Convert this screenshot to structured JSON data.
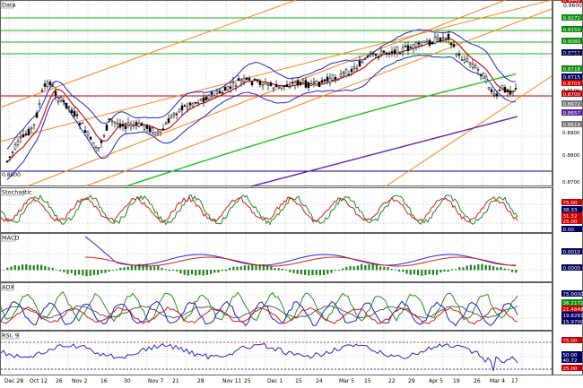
{
  "panels": {
    "price": {
      "label": "Data"
    },
    "stochastic": {
      "label": "Stochastic"
    },
    "macd": {
      "label": "MACD"
    },
    "adx": {
      "label": "ADX"
    },
    "rsi": {
      "label": "RSI, 9"
    }
  },
  "colors": {
    "background": "#ffffff",
    "grid": "#9a9a9a",
    "candle": "#000000",
    "bollinger": "#1e28c8",
    "ma_short": "#c81414",
    "ma_mid": "#19c819",
    "ma_long": "#6a1eb4",
    "channel": "#ff7f1e",
    "hline_green": "#14b414",
    "hline_red": "#cc0000",
    "hline_blue": "#00008a",
    "stoch_green": "#1e8c1e",
    "stoch_red": "#d21e1e",
    "macd_blue": "#2828dc",
    "macd_red": "#dc1e1e",
    "macd_hist": "#1e821e",
    "adx_green": "#1e961e",
    "adx_blue": "#2020d0",
    "adx_red": "#d21e1e",
    "adx_dark": "#3c3c3c",
    "rsi_blue": "#2828c8",
    "label_red": "#cc0000",
    "label_navy": "#000060",
    "label_green": "#0a8c0a",
    "label_purple": "#5a1ea0",
    "label_gray": "#787878"
  },
  "price_axis": {
    "top": "0.9600",
    "left_marker": "0.8800",
    "ticks": [
      "0.9200",
      "0.9100",
      "0.8900",
      "0.8800",
      "0.8700"
    ],
    "labels": [
      {
        "text": "0.9440",
        "color": "label_red"
      },
      {
        "text": "0.9272",
        "color": "label_green"
      },
      {
        "text": "0.9150",
        "color": "label_green"
      },
      {
        "text": "0.9080",
        "color": "label_green"
      },
      {
        "text": "0.8757",
        "color": "label_navy"
      },
      {
        "text": "0.8718",
        "color": "label_green"
      },
      {
        "text": "0.8715",
        "color": "label_navy"
      },
      {
        "text": "0.8703",
        "color": "label_red"
      },
      {
        "text": "0.8700",
        "color": "label_red"
      },
      {
        "text": "0.8672",
        "color": "label_gray"
      },
      {
        "text": "0.8657",
        "color": "label_purple"
      },
      {
        "text": "0.8619",
        "color": "label_gray"
      }
    ]
  },
  "stoch_axis": {
    "labels": [
      {
        "text": "75.00",
        "color": "label_red"
      },
      {
        "text": "38.33",
        "color": "label_navy"
      },
      {
        "text": "31.32",
        "color": "label_red"
      },
      {
        "text": "25.00",
        "color": "label_red"
      },
      {
        "text": "0.00",
        "color": "label_navy"
      }
    ]
  },
  "macd_axis": {
    "labels": [
      {
        "text": "0.0010",
        "color": "label_navy"
      },
      {
        "text": "0.0000",
        "color": "label_navy"
      }
    ]
  },
  "adx_axis": {
    "labels": [
      {
        "text": "75.0000",
        "color": "label_navy"
      },
      {
        "text": "36.2172",
        "color": "label_green"
      },
      {
        "text": "21.4848",
        "color": "label_red"
      },
      {
        "text": "19.8281",
        "color": "label_navy"
      },
      {
        "text": "15.9700",
        "color": "label_navy"
      }
    ]
  },
  "rsi_axis": {
    "labels": [
      {
        "text": "75.00",
        "color": "label_red"
      },
      {
        "text": "50.00",
        "color": "label_navy"
      },
      {
        "text": "40.72",
        "color": "label_navy"
      },
      {
        "text": "25.00",
        "color": "label_red"
      }
    ]
  },
  "x_axis": {
    "labels": [
      "Dec 28",
      "Oct 12",
      "26",
      "Nov 2",
      "16",
      "30",
      "Nov 7",
      "21",
      "28",
      "Nov 11",
      "25",
      "Dec 1",
      "15",
      "24",
      "Mar 5",
      "15",
      "22",
      "29",
      "Apr 5",
      "19",
      "26",
      "Mar 4",
      "17"
    ]
  }
}
